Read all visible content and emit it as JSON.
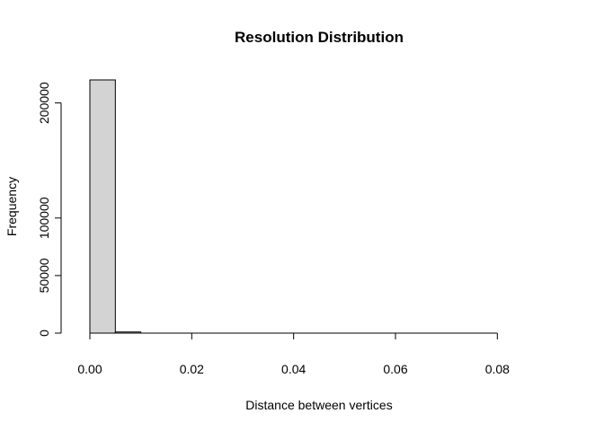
{
  "chart_data": {
    "type": "bar",
    "subtype": "histogram",
    "title": "Resolution Distribution",
    "xlabel": "Distance between vertices",
    "ylabel": "Frequency",
    "xlim": [
      0,
      0.09
    ],
    "ylim": [
      0,
      220000
    ],
    "bin_width": 0.005,
    "bins": [
      {
        "x0": 0.0,
        "x1": 0.005,
        "count": 220000
      },
      {
        "x0": 0.005,
        "x1": 0.01,
        "count": 1000
      },
      {
        "x0": 0.01,
        "x1": 0.015,
        "count": 0
      },
      {
        "x0": 0.015,
        "x1": 0.02,
        "count": 0
      },
      {
        "x0": 0.02,
        "x1": 0.025,
        "count": 0
      },
      {
        "x0": 0.025,
        "x1": 0.03,
        "count": 0
      },
      {
        "x0": 0.03,
        "x1": 0.035,
        "count": 0
      },
      {
        "x0": 0.035,
        "x1": 0.04,
        "count": 0
      },
      {
        "x0": 0.04,
        "x1": 0.045,
        "count": 0
      },
      {
        "x0": 0.045,
        "x1": 0.05,
        "count": 0
      },
      {
        "x0": 0.05,
        "x1": 0.055,
        "count": 0
      },
      {
        "x0": 0.055,
        "x1": 0.06,
        "count": 0
      },
      {
        "x0": 0.06,
        "x1": 0.065,
        "count": 0
      },
      {
        "x0": 0.065,
        "x1": 0.07,
        "count": 0
      },
      {
        "x0": 0.07,
        "x1": 0.075,
        "count": 0
      },
      {
        "x0": 0.075,
        "x1": 0.08,
        "count": 0
      },
      {
        "x0": 0.08,
        "x1": 0.085,
        "count": 0
      },
      {
        "x0": 0.085,
        "x1": 0.09,
        "count": 0
      }
    ],
    "x_ticks": [
      {
        "value": 0.0,
        "label": "0.00"
      },
      {
        "value": 0.02,
        "label": "0.02"
      },
      {
        "value": 0.04,
        "label": "0.04"
      },
      {
        "value": 0.06,
        "label": "0.06"
      },
      {
        "value": 0.08,
        "label": "0.08"
      }
    ],
    "y_ticks": [
      {
        "value": 0,
        "label": "0"
      },
      {
        "value": 50000,
        "label": "50000"
      },
      {
        "value": 100000,
        "label": "100000"
      },
      {
        "value": 200000,
        "label": "200000"
      }
    ],
    "grid": false,
    "legend": "none",
    "colors": {
      "bar_fill": "#d3d3d3",
      "bar_stroke": "#000000",
      "background": "#ffffff"
    }
  }
}
